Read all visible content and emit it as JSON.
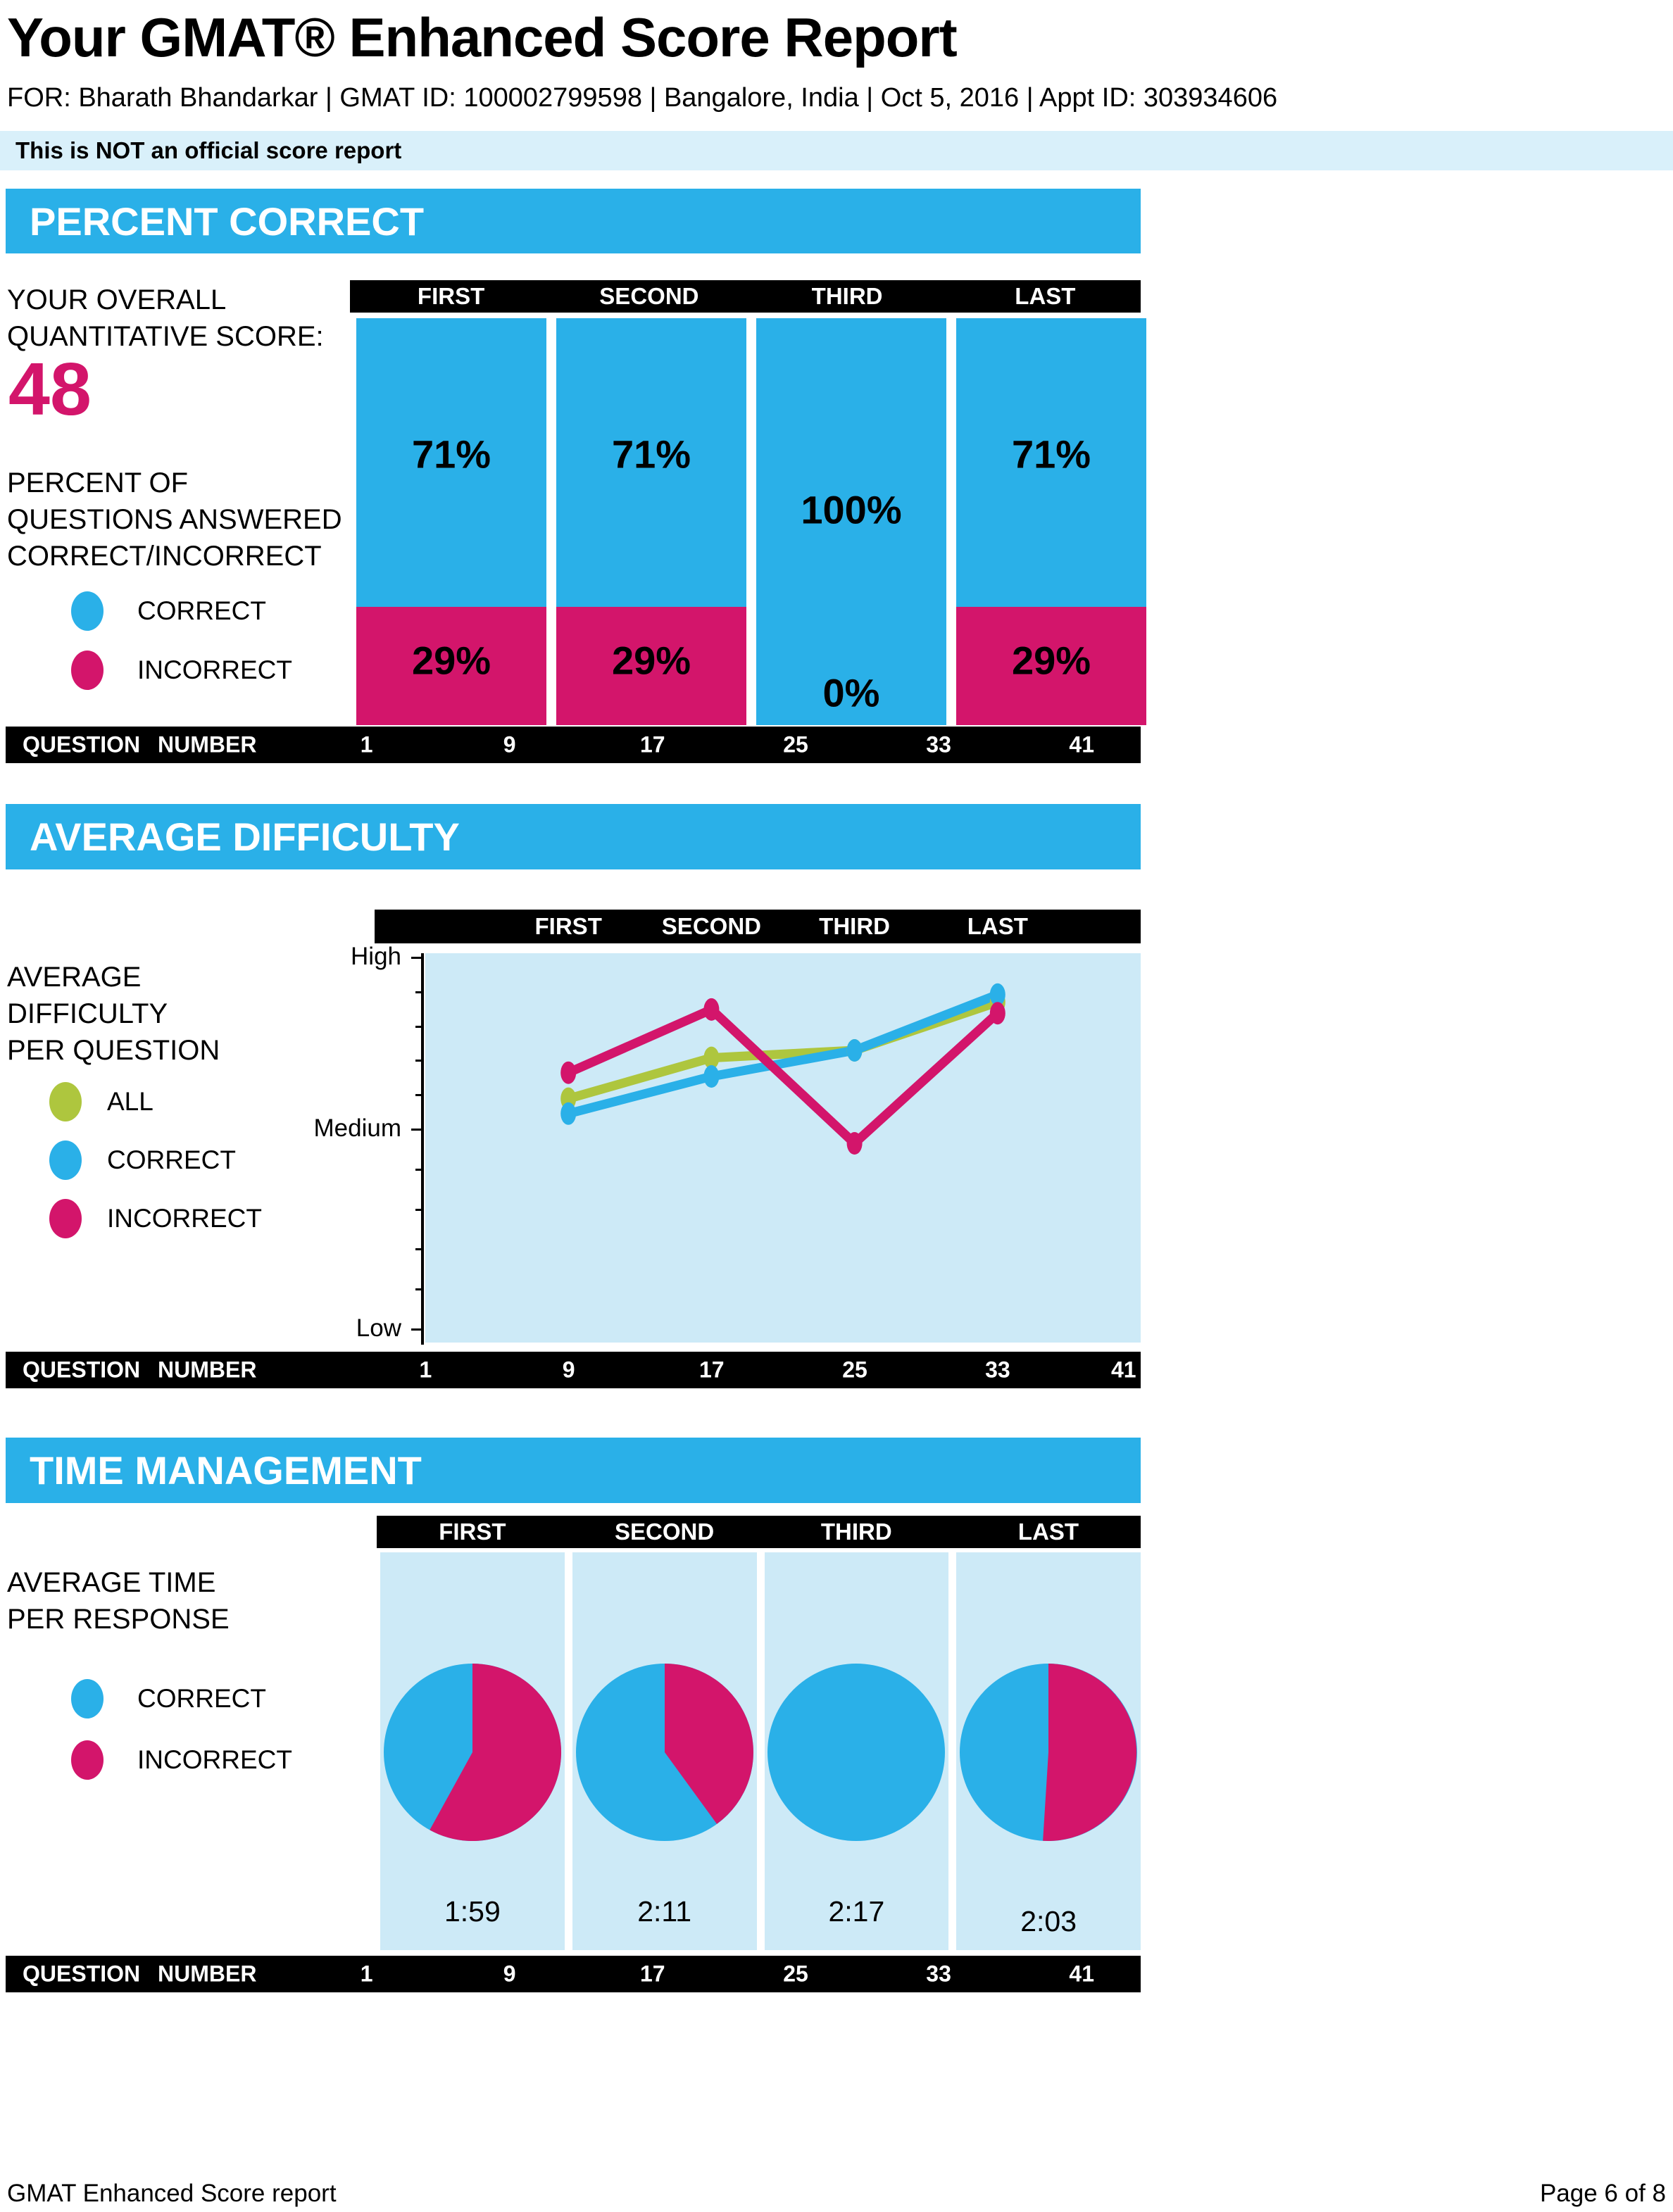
{
  "page": {
    "title": "Your GMAT® Enhanced Score Report",
    "subtitle": "FOR: Bharath Bhandarkar | GMAT ID: 100002799598 | Bangalore, India | Oct 5, 2016 | Appt ID: 303934606",
    "banner": "This is NOT an official score report",
    "footer_left": "GMAT Enhanced Score report",
    "footer_right": "Page 6 of 8"
  },
  "colors": {
    "blue": "#2AB0E8",
    "pink": "#D3156B",
    "green": "#AEC63E",
    "panel": "#CDEAF7",
    "banner_bg": "#D9F0FA",
    "black": "#000000"
  },
  "columns": [
    "FIRST",
    "SECOND",
    "THIRD",
    "LAST"
  ],
  "question_axis": {
    "label": "QUESTION NUMBER",
    "ticks": [
      "1",
      "9",
      "17",
      "25",
      "33",
      "41"
    ]
  },
  "sections": {
    "percent_correct": {
      "title": "PERCENT CORRECT",
      "score_label": "YOUR OVERALL QUANTITATIVE SCORE:",
      "score_value": "48",
      "description": "PERCENT OF QUESTIONS ANSWERED CORRECT/INCORRECT",
      "legend": [
        {
          "label": "CORRECT",
          "color": "blue"
        },
        {
          "label": "INCORRECT",
          "color": "pink"
        }
      ]
    },
    "average_difficulty": {
      "title": "AVERAGE DIFFICULTY",
      "description": "AVERAGE DIFFICULTY PER QUESTION",
      "legend": [
        {
          "label": "ALL",
          "color": "green"
        },
        {
          "label": "CORRECT",
          "color": "blue"
        },
        {
          "label": "INCORRECT",
          "color": "pink"
        }
      ]
    },
    "time_management": {
      "title": "TIME MANAGEMENT",
      "description": "AVERAGE TIME PER RESPONSE",
      "legend": [
        {
          "label": "CORRECT",
          "color": "blue"
        },
        {
          "label": "INCORRECT",
          "color": "pink"
        }
      ]
    }
  },
  "chart_data": [
    {
      "id": "percent_correct",
      "type": "bar",
      "stacked": true,
      "categories": [
        "FIRST",
        "SECOND",
        "THIRD",
        "LAST"
      ],
      "series": [
        {
          "name": "CORRECT",
          "color_key": "blue",
          "values": [
            71,
            71,
            100,
            71
          ]
        },
        {
          "name": "INCORRECT",
          "color_key": "pink",
          "values": [
            29,
            29,
            0,
            29
          ]
        }
      ],
      "value_labels": [
        [
          "71%",
          "29%"
        ],
        [
          "71%",
          "29%"
        ],
        [
          "100%",
          "0%"
        ],
        [
          "71%",
          "29%"
        ]
      ],
      "ylim": [
        0,
        100
      ],
      "xlabel": "QUESTION NUMBER",
      "x_axis_ticks": [
        "1",
        "9",
        "17",
        "25",
        "33",
        "41"
      ]
    },
    {
      "id": "average_difficulty",
      "type": "line",
      "categories": [
        "FIRST",
        "SECOND",
        "THIRD",
        "LAST"
      ],
      "y_axis": {
        "labels": [
          "High",
          "Medium",
          "Low"
        ],
        "range": [
          0,
          1
        ],
        "note": "0 = Low, 1 = High, estimated from plot"
      },
      "series": [
        {
          "name": "ALL",
          "color_key": "green",
          "values": [
            0.62,
            0.73,
            0.75,
            0.88
          ]
        },
        {
          "name": "CORRECT",
          "color_key": "blue",
          "values": [
            0.58,
            0.68,
            0.75,
            0.9
          ]
        },
        {
          "name": "INCORRECT",
          "color_key": "pink",
          "values": [
            0.69,
            0.86,
            0.5,
            0.85
          ]
        }
      ],
      "xlabel": "QUESTION NUMBER",
      "x_axis_ticks": [
        "1",
        "9",
        "17",
        "25",
        "33",
        "41"
      ]
    },
    {
      "id": "time_management",
      "type": "pie",
      "categories": [
        "FIRST",
        "SECOND",
        "THIRD",
        "LAST"
      ],
      "pies": [
        {
          "avg_time": "1:59",
          "correct_pct": 42,
          "incorrect_pct": 58
        },
        {
          "avg_time": "2:11",
          "correct_pct": 60,
          "incorrect_pct": 40
        },
        {
          "avg_time": "2:17",
          "correct_pct": 100,
          "incorrect_pct": 0
        },
        {
          "avg_time": "2:03",
          "correct_pct": 49,
          "incorrect_pct": 51
        }
      ],
      "xlabel": "QUESTION NUMBER",
      "x_axis_ticks": [
        "1",
        "9",
        "17",
        "25",
        "33",
        "41"
      ]
    }
  ]
}
